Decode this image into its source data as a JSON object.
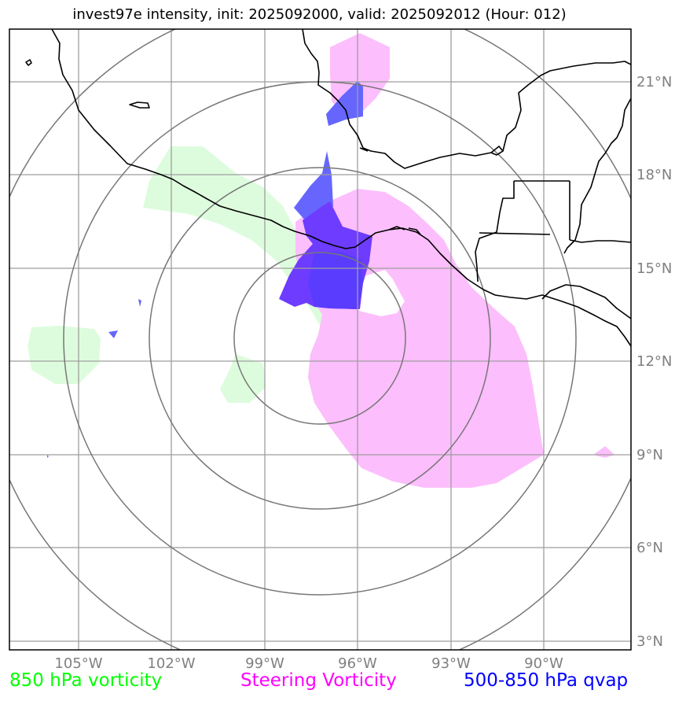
{
  "title": "invest97e intensity, init: 2025092000, valid: 2025092012 (Hour: 012)",
  "map": {
    "lon_range": [
      -107.2,
      -87.4
    ],
    "lat_range": [
      2.7,
      22.7
    ],
    "lon_ticks": [
      {
        "lon": -105,
        "label": "105°W"
      },
      {
        "lon": -102,
        "label": "102°W"
      },
      {
        "lon": -99,
        "label": "99°W"
      },
      {
        "lon": -96,
        "label": "96°W"
      },
      {
        "lon": -93,
        "label": "93°W"
      },
      {
        "lon": -90,
        "label": "90°W"
      }
    ],
    "lat_ticks": [
      {
        "lat": 21,
        "label": "21°N"
      },
      {
        "lat": 18,
        "label": "18°N"
      },
      {
        "lat": 15,
        "label": "15°N"
      },
      {
        "lat": 12,
        "label": "12°N"
      },
      {
        "lat": 9,
        "label": "9°N"
      },
      {
        "lat": 6,
        "label": "6°N"
      },
      {
        "lat": 3,
        "label": "3°N"
      }
    ],
    "range_rings": {
      "center_lon": -97.2,
      "center_lat": 12.9,
      "radii_deg": [
        2.75,
        5.5,
        8.25,
        11.0
      ]
    }
  },
  "legend": {
    "vort850": {
      "label": "850 hPa vorticity",
      "color": "#00ff00"
    },
    "steering": {
      "label": "Steering Vorticity",
      "color": "#ff00ff"
    },
    "qvap": {
      "label": "500-850 hPa qvap",
      "color": "#0000ff"
    }
  },
  "colors": {
    "vort850_fill": "#ddfcdd",
    "steering_fill": "#fcbefc",
    "qvap_fill": "#5b52ff",
    "grid": "#9e9e9e",
    "ring": "#777777",
    "coast": "#000000"
  }
}
